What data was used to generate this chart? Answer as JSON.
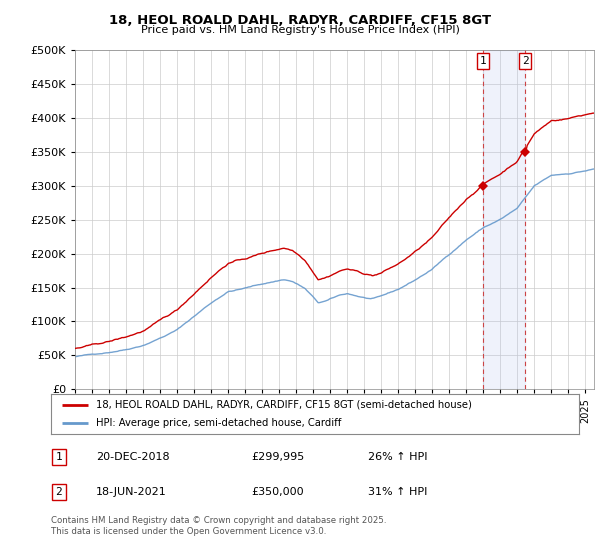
{
  "title": "18, HEOL ROALD DAHL, RADYR, CARDIFF, CF15 8GT",
  "subtitle": "Price paid vs. HM Land Registry's House Price Index (HPI)",
  "hpi_color": "#6699cc",
  "price_color": "#cc0000",
  "marker1_date_x": 2018.96,
  "marker1_price": 299995,
  "marker2_date_x": 2021.46,
  "marker2_price": 350000,
  "legend_line1": "18, HEOL ROALD DAHL, RADYR, CARDIFF, CF15 8GT (semi-detached house)",
  "legend_line2": "HPI: Average price, semi-detached house, Cardiff",
  "annotation1_date": "20-DEC-2018",
  "annotation1_price": "£299,995",
  "annotation1_hpi": "26% ↑ HPI",
  "annotation2_date": "18-JUN-2021",
  "annotation2_price": "£350,000",
  "annotation2_hpi": "31% ↑ HPI",
  "footer": "Contains HM Land Registry data © Crown copyright and database right 2025.\nThis data is licensed under the Open Government Licence v3.0.",
  "ylim_max": 500000,
  "yticks": [
    0,
    50000,
    100000,
    150000,
    200000,
    250000,
    300000,
    350000,
    400000,
    450000,
    500000
  ],
  "xmin": 1995,
  "xmax": 2025.5
}
